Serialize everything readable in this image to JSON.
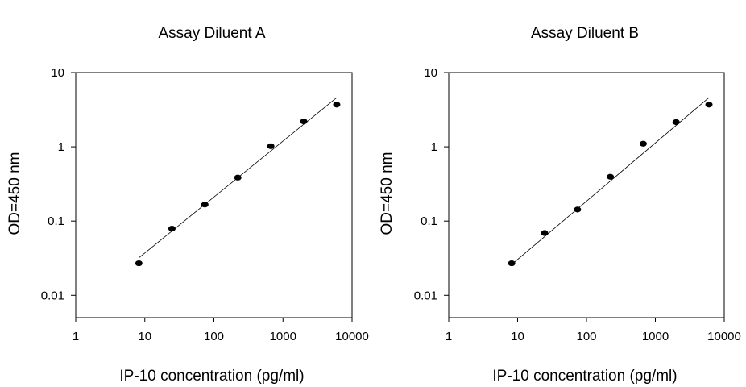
{
  "chart_data": [
    {
      "type": "scatter",
      "title": "Assay Diluent A",
      "xlabel": "IP-10 concentration (pg/ml)",
      "ylabel": "OD=450 nm",
      "x_scale": "log",
      "y_scale": "log",
      "xlim": [
        1,
        10000
      ],
      "ylim": [
        0.005,
        10
      ],
      "xticks": [
        1,
        10,
        100,
        1000,
        10000
      ],
      "xtick_labels": [
        "1",
        "10",
        "100",
        "1000",
        "10000"
      ],
      "yticks": [
        0.01,
        0.1,
        1,
        10
      ],
      "ytick_labels": [
        "0.01",
        "0.1",
        "1",
        "10"
      ],
      "grid": false,
      "legend": false,
      "series": [
        {
          "x": [
            8.2,
            24.7,
            74,
            222,
            667,
            2000,
            6000
          ],
          "y": [
            0.027,
            0.079,
            0.167,
            0.385,
            1.02,
            2.2,
            3.7
          ]
        }
      ],
      "fit_line": {
        "x": [
          8.2,
          6000
        ],
        "y": [
          0.032,
          4.6
        ]
      }
    },
    {
      "type": "scatter",
      "title": "Assay Diluent B",
      "xlabel": "IP-10 concentration (pg/ml)",
      "ylabel": "OD=450 nm",
      "x_scale": "log",
      "y_scale": "log",
      "xlim": [
        1,
        10000
      ],
      "ylim": [
        0.005,
        10
      ],
      "xticks": [
        1,
        10,
        100,
        1000,
        10000
      ],
      "xtick_labels": [
        "1",
        "10",
        "100",
        "1000",
        "10000"
      ],
      "yticks": [
        0.01,
        0.1,
        1,
        10
      ],
      "ytick_labels": [
        "0.01",
        "0.1",
        "1",
        "10"
      ],
      "grid": false,
      "legend": false,
      "series": [
        {
          "x": [
            8.2,
            24.7,
            74,
            222,
            667,
            2000,
            6000
          ],
          "y": [
            0.027,
            0.069,
            0.143,
            0.395,
            1.1,
            2.15,
            3.7
          ]
        }
      ],
      "fit_line": {
        "x": [
          8.2,
          6000
        ],
        "y": [
          0.026,
          4.6
        ]
      }
    }
  ]
}
